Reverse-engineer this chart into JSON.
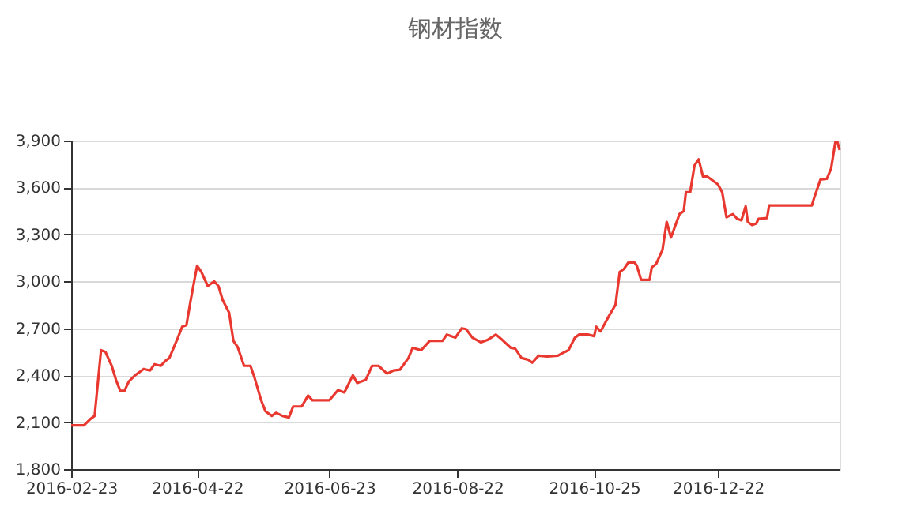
{
  "chart_data": {
    "type": "line",
    "title": "钢材指数",
    "x": [
      "2016-02-23",
      "2016-02-29",
      "2016-03-03",
      "2016-03-05",
      "2016-03-08",
      "2016-03-10",
      "2016-03-13",
      "2016-03-15",
      "2016-03-17",
      "2016-03-19",
      "2016-03-21",
      "2016-03-24",
      "2016-03-26",
      "2016-03-28",
      "2016-03-31",
      "2016-04-02",
      "2016-04-05",
      "2016-04-07",
      "2016-04-09",
      "2016-04-13",
      "2016-04-15",
      "2016-04-17",
      "2016-04-19",
      "2016-04-22",
      "2016-04-24",
      "2016-04-27",
      "2016-04-30",
      "2016-05-02",
      "2016-05-04",
      "2016-05-07",
      "2016-05-09",
      "2016-05-11",
      "2016-05-14",
      "2016-05-17",
      "2016-05-19",
      "2016-05-22",
      "2016-05-24",
      "2016-05-27",
      "2016-05-29",
      "2016-06-01",
      "2016-06-04",
      "2016-06-06",
      "2016-06-10",
      "2016-06-13",
      "2016-06-15",
      "2016-06-23",
      "2016-06-27",
      "2016-06-30",
      "2016-07-04",
      "2016-07-06",
      "2016-07-10",
      "2016-07-13",
      "2016-07-16",
      "2016-07-20",
      "2016-07-23",
      "2016-07-26",
      "2016-07-30",
      "2016-08-01",
      "2016-08-05",
      "2016-08-09",
      "2016-08-15",
      "2016-08-17",
      "2016-08-21",
      "2016-08-24",
      "2016-08-26",
      "2016-08-29",
      "2016-09-02",
      "2016-09-05",
      "2016-09-09",
      "2016-09-12",
      "2016-09-16",
      "2016-09-18",
      "2016-09-21",
      "2016-09-24",
      "2016-09-26",
      "2016-09-29",
      "2016-10-03",
      "2016-10-08",
      "2016-10-10",
      "2016-10-13",
      "2016-10-16",
      "2016-10-18",
      "2016-10-22",
      "2016-10-25",
      "2016-10-26",
      "2016-10-28",
      "2016-10-30",
      "2016-11-01",
      "2016-11-04",
      "2016-11-06",
      "2016-11-08",
      "2016-11-10",
      "2016-11-13",
      "2016-11-14",
      "2016-11-16",
      "2016-11-20",
      "2016-11-21",
      "2016-11-23",
      "2016-11-26",
      "2016-11-28",
      "2016-11-30",
      "2016-12-04",
      "2016-12-06",
      "2016-12-07",
      "2016-12-09",
      "2016-12-11",
      "2016-12-13",
      "2016-12-15",
      "2016-12-17",
      "2016-12-20",
      "2016-12-22",
      "2016-12-24",
      "2016-12-26",
      "2016-12-29",
      "2016-12-31",
      "2017-01-02",
      "2017-01-04",
      "2017-01-05",
      "2017-01-07",
      "2017-01-09",
      "2017-01-10",
      "2017-01-14",
      "2017-01-15",
      "2017-02-04",
      "2017-02-05",
      "2017-02-08",
      "2017-02-11",
      "2017-02-13",
      "2017-02-15",
      "2017-02-16",
      "2017-02-17"
    ],
    "series": [
      {
        "color": "#e8382f",
        "values": [
          2080,
          2080,
          2120,
          2140,
          2560,
          2550,
          2460,
          2370,
          2300,
          2300,
          2360,
          2400,
          2420,
          2440,
          2430,
          2470,
          2460,
          2490,
          2510,
          2640,
          2710,
          2720,
          2880,
          3100,
          3060,
          2970,
          3000,
          2970,
          2880,
          2800,
          2620,
          2580,
          2460,
          2460,
          2380,
          2240,
          2170,
          2140,
          2160,
          2140,
          2130,
          2200,
          2200,
          2270,
          2240,
          2240,
          2305,
          2290,
          2400,
          2350,
          2370,
          2460,
          2460,
          2410,
          2430,
          2435,
          2510,
          2575,
          2560,
          2620,
          2620,
          2660,
          2640,
          2700,
          2695,
          2640,
          2610,
          2625,
          2660,
          2625,
          2575,
          2570,
          2510,
          2500,
          2480,
          2525,
          2520,
          2525,
          2540,
          2560,
          2640,
          2660,
          2660,
          2650,
          2710,
          2680,
          2730,
          2780,
          2850,
          3060,
          3080,
          3120,
          3120,
          3100,
          3010,
          3010,
          3090,
          3110,
          3200,
          3380,
          3280,
          3430,
          3450,
          3570,
          3570,
          3740,
          3780,
          3670,
          3670,
          3640,
          3620,
          3570,
          3410,
          3430,
          3400,
          3390,
          3480,
          3380,
          3360,
          3370,
          3400,
          3405,
          3485,
          3485,
          3530,
          3650,
          3655,
          3720,
          3890,
          3890,
          3840
        ]
      }
    ],
    "xlim": [
      "2016-02-23",
      "2017-02-17"
    ],
    "xticks": [
      "2016-02-23",
      "2016-04-22",
      "2016-06-23",
      "2016-08-22",
      "2016-10-25",
      "2016-12-22"
    ],
    "ylim": [
      1800,
      3900
    ],
    "yticks": [
      {
        "value": 1800,
        "label": "1,800"
      },
      {
        "value": 2100,
        "label": "2,100"
      },
      {
        "value": 2400,
        "label": "2,400"
      },
      {
        "value": 2700,
        "label": "2,700"
      },
      {
        "value": 3000,
        "label": "3,000"
      },
      {
        "value": 3300,
        "label": "3,300"
      },
      {
        "value": 3600,
        "label": "3,600"
      },
      {
        "value": 3900,
        "label": "3,900"
      }
    ],
    "grid": "y",
    "legend": false,
    "line_style": "solid"
  }
}
